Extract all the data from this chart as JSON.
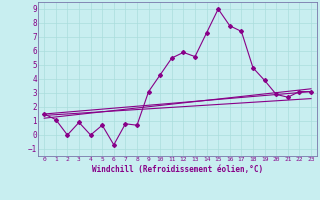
{
  "xlabel": "Windchill (Refroidissement éolien,°C)",
  "background_color": "#c8eef0",
  "grid_color": "#aadddd",
  "line_color": "#880088",
  "spine_color": "#7777aa",
  "xlim": [
    -0.5,
    23.5
  ],
  "ylim": [
    -1.5,
    9.5
  ],
  "xticks": [
    0,
    1,
    2,
    3,
    4,
    5,
    6,
    7,
    8,
    9,
    10,
    11,
    12,
    13,
    14,
    15,
    16,
    17,
    18,
    19,
    20,
    21,
    22,
    23
  ],
  "yticks": [
    -1,
    0,
    1,
    2,
    3,
    4,
    5,
    6,
    7,
    8,
    9
  ],
  "line1_x": [
    0,
    1,
    2,
    3,
    4,
    5,
    6,
    7,
    8,
    9,
    10,
    11,
    12,
    13,
    14,
    15,
    16,
    17,
    18,
    19,
    20,
    21,
    22,
    23
  ],
  "line1_y": [
    1.5,
    1.1,
    0.0,
    0.9,
    0.0,
    0.7,
    -0.7,
    0.8,
    0.7,
    3.1,
    4.3,
    5.5,
    5.9,
    5.6,
    7.3,
    9.0,
    7.8,
    7.4,
    4.8,
    3.9,
    2.9,
    2.7,
    3.1,
    3.1
  ],
  "line2_x": [
    0,
    23
  ],
  "line2_y": [
    1.5,
    3.1
  ],
  "line3_x": [
    0,
    23
  ],
  "line3_y": [
    1.4,
    2.6
  ],
  "line4_x": [
    0,
    23
  ],
  "line4_y": [
    1.2,
    3.3
  ]
}
